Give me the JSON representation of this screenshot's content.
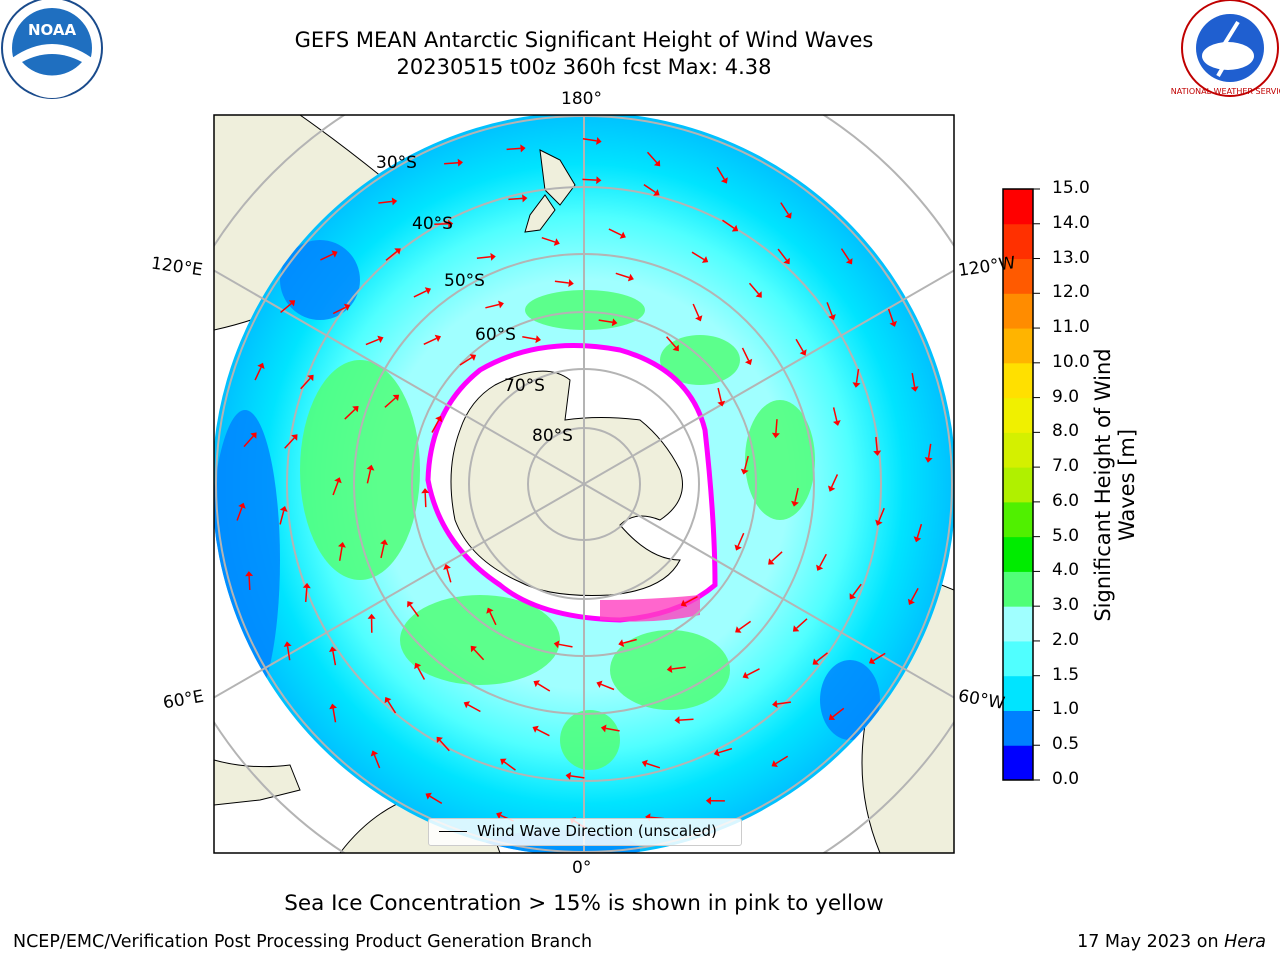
{
  "header": {
    "title_line1": "GEFS MEAN Antarctic Significant Height of Wind Waves",
    "title_line2": "20230515 t00z 360h fcst   Max: 4.38"
  },
  "logos": {
    "left": "NOAA",
    "right": "NATIONAL WEATHER SERVICE"
  },
  "map": {
    "lon_labels": {
      "top": "180°",
      "bottom": "0°",
      "left_upper": "120°E",
      "left_lower": "60°E",
      "right_upper": "120°W",
      "right_lower": "60°W"
    },
    "lat_labels": [
      "30°S",
      "40°S",
      "50°S",
      "60°S",
      "70°S",
      "80°S"
    ],
    "legend": "Wind Wave Direction (unscaled)",
    "colors": {
      "land": "#efefdc",
      "ice": "#ffffff",
      "ice_edge": "#ff00ff",
      "arrow": "#ff0000",
      "grid": "#b4b4b4"
    }
  },
  "colorbar": {
    "label": "Significant Height of Wind Waves [m]",
    "label_line1": "Significant Height of Wind",
    "label_line2": "Waves [m]",
    "ticks": [
      "0.0",
      "0.5",
      "1.0",
      "1.5",
      "2.0",
      "3.0",
      "4.0",
      "5.0",
      "6.0",
      "7.0",
      "8.0",
      "9.0",
      "10.0",
      "11.0",
      "12.0",
      "13.0",
      "14.0",
      "15.0"
    ],
    "colors": [
      "#0000ff",
      "#0080ff",
      "#00e4ff",
      "#50ffff",
      "#a0ffff",
      "#50ff78",
      "#00ec00",
      "#50f000",
      "#b0f000",
      "#d4f000",
      "#f0f000",
      "#ffe000",
      "#ffb400",
      "#ff8c00",
      "#ff5a00",
      "#ff3000",
      "#ff0000"
    ]
  },
  "footer": {
    "note": "Sea Ice Concentration > 15% is shown in pink to yellow",
    "left": "NCEP/EMC/Verification Post Processing Product Generation Branch",
    "right_prefix": "17 May 2023 on",
    "right_host": "Hera"
  }
}
